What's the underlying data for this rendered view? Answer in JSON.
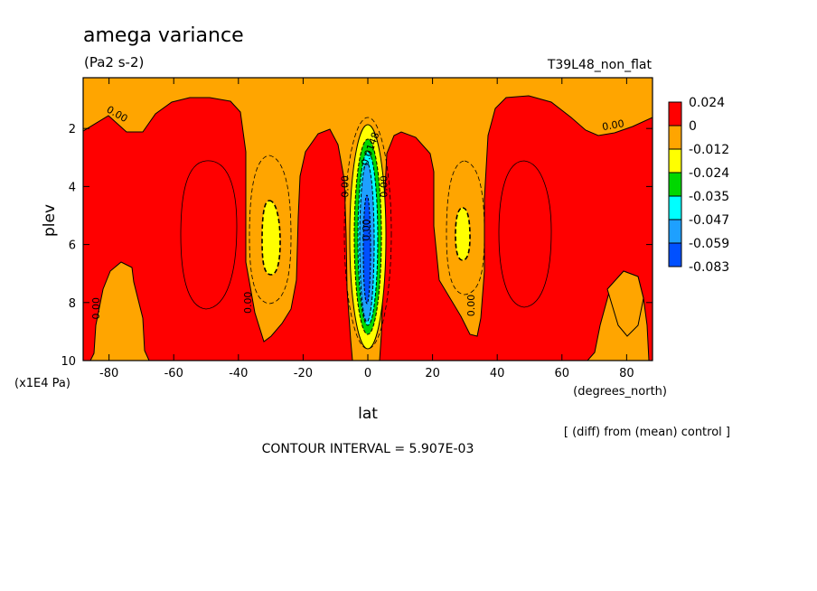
{
  "chart_data": {
    "type": "heatmap",
    "subtype": "filled-contour",
    "title": "amega variance",
    "units": "(Pa2 s-2)",
    "run_label": "T39L48_non_flat",
    "xlabel": "lat",
    "x_units": "(degrees_north)",
    "ylabel": "plev",
    "y_units": "(x1E4 Pa)",
    "xlim": [
      -88,
      88
    ],
    "ylim": [
      10,
      0.25
    ],
    "x_ticks": [
      "-80",
      "-60",
      "-40",
      "-20",
      "0",
      "20",
      "40",
      "60",
      "80"
    ],
    "x_tick_values": [
      -80,
      -60,
      -40,
      -20,
      0,
      20,
      40,
      60,
      80
    ],
    "y_ticks": [
      "2",
      "4",
      "6",
      "8",
      "10"
    ],
    "y_tick_values": [
      2,
      4,
      6,
      8,
      10
    ],
    "contour_interval_text": "CONTOUR INTERVAL = 5.907E-03",
    "footnote": "[ (diff) from (mean) control ]",
    "colorbar": {
      "labels": [
        "0.024",
        "0",
        "-0.012",
        "-0.024",
        "-0.035",
        "-0.047",
        "-0.059",
        "-0.083"
      ],
      "colors": [
        "#ff0000",
        "#ffa500",
        "#ffff00",
        "#00d700",
        "#00ffff",
        "#1ea0ff",
        "#0050ff"
      ]
    },
    "contour_labels": [
      {
        "text": "0.00",
        "lat": -78,
        "plev": 1.6,
        "rot": 30
      },
      {
        "text": "0.00",
        "lat": 76,
        "plev": 2.0,
        "rot": -10
      },
      {
        "text": "0.00",
        "lat": -83,
        "plev": 8.2,
        "rot": -90
      },
      {
        "text": "0.00",
        "lat": -36,
        "plev": 8.0,
        "rot": -90
      },
      {
        "text": "0.00",
        "lat": 33,
        "plev": 8.1,
        "rot": -90
      },
      {
        "text": "0.00",
        "lat": -6,
        "plev": 4.0,
        "rot": -90
      },
      {
        "text": "0.00",
        "lat": 6,
        "plev": 4.0,
        "rot": -90
      },
      {
        "text": "0.00",
        "lat": 0.5,
        "plev": 5.5,
        "rot": -90
      },
      {
        "text": "-0.0148",
        "lat": 1.5,
        "plev": 2.8,
        "rot": -70
      }
    ]
  }
}
